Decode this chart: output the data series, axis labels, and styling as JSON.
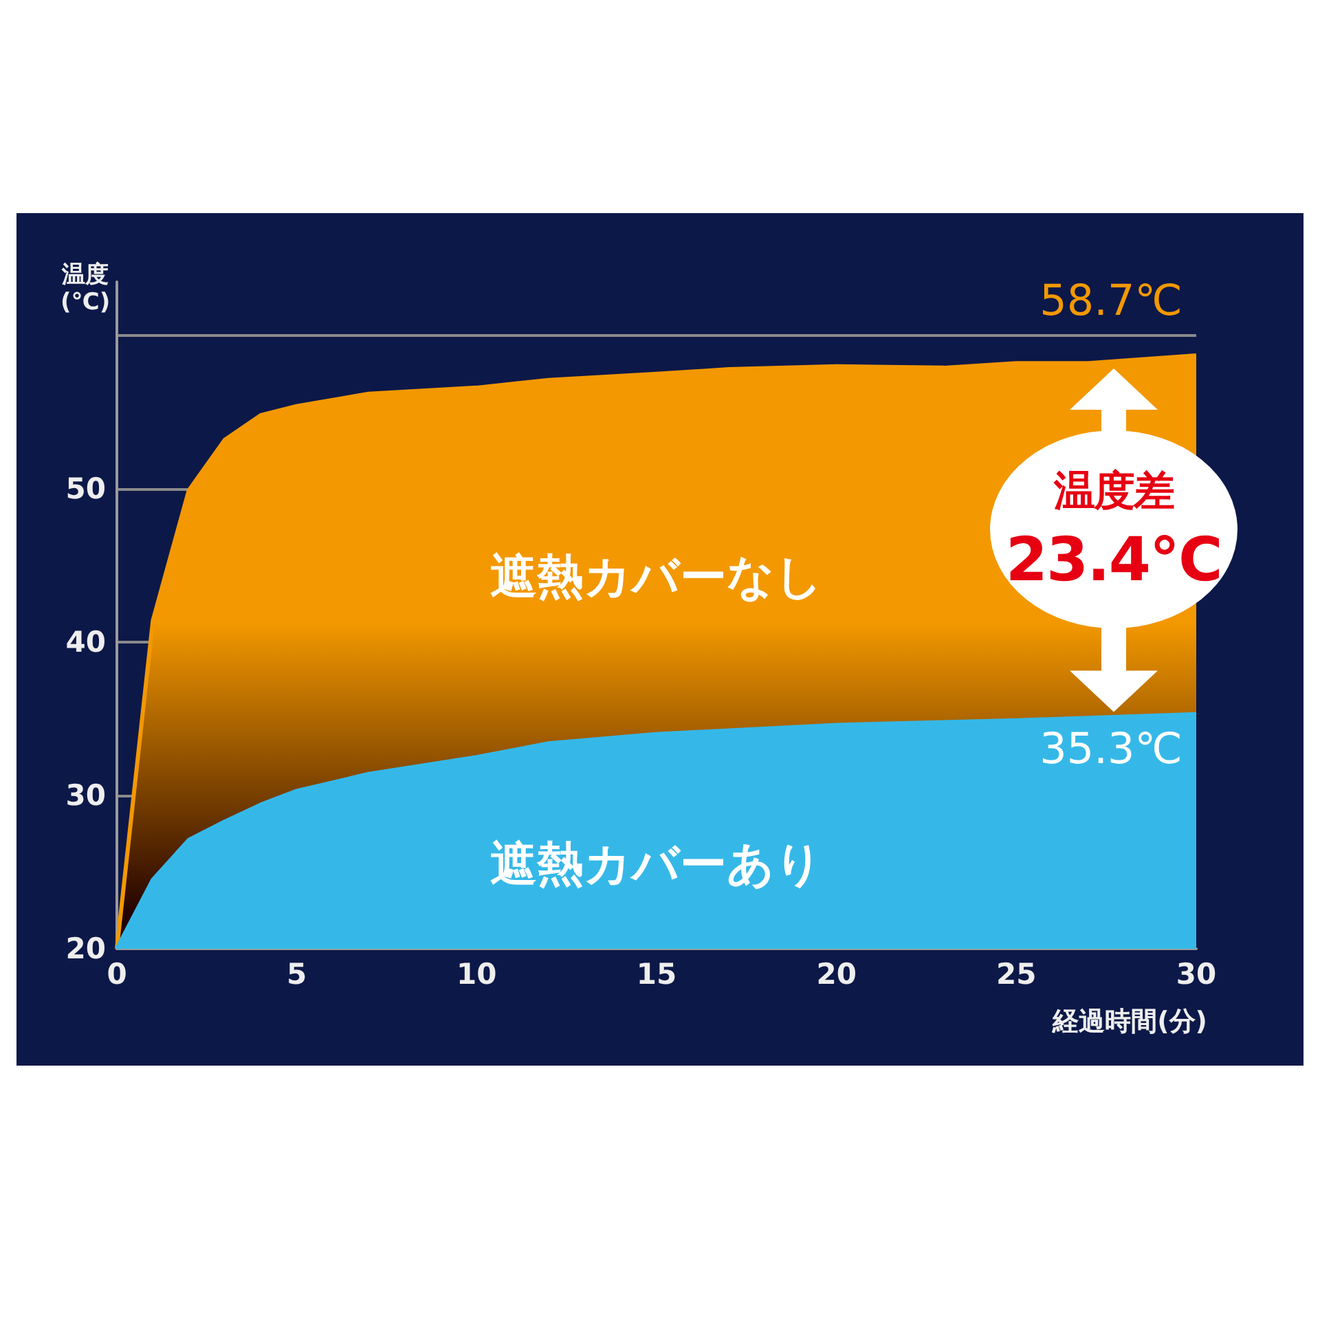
{
  "chart_data": {
    "type": "area",
    "xlabel": "経過時間(分)",
    "ylabel": "温度(℃)",
    "xlim": [
      0,
      30
    ],
    "xticks": [
      0,
      5,
      10,
      15,
      20,
      25,
      30
    ],
    "ylim": [
      20,
      63.5
    ],
    "yticks": [
      20,
      30,
      40,
      50,
      {
        "value": 60,
        "label": null
      }
    ],
    "grid": "y",
    "legend": false,
    "series": [
      {
        "name": "遮熱カバーなし",
        "color": "#f39800",
        "x": [
          0,
          1,
          2,
          3,
          4,
          5,
          7,
          10,
          12,
          15,
          17,
          20,
          23,
          25,
          27,
          30
        ],
        "values": [
          20,
          41.4,
          49.9,
          53.2,
          54.8,
          55.4,
          56.2,
          56.6,
          57.1,
          57.5,
          57.8,
          58.0,
          57.9,
          58.2,
          58.2,
          58.7
        ]
      },
      {
        "name": "遮熱カバーあり",
        "color": "#35b8e8",
        "x": [
          0,
          1,
          2,
          3,
          4,
          5,
          7,
          10,
          12,
          15,
          20,
          25,
          30
        ],
        "values": [
          20,
          24.5,
          27.1,
          28.3,
          29.4,
          30.3,
          31.4,
          32.5,
          33.4,
          34.0,
          34.6,
          34.9,
          35.3
        ]
      }
    ],
    "annotations": [
      {
        "text": "58.7℃",
        "x": 30,
        "y": 58.7
      },
      {
        "text": "35.3℃",
        "x": 30,
        "y": 35.3
      },
      "温度差\n23.4℃"
    ]
  }
}
